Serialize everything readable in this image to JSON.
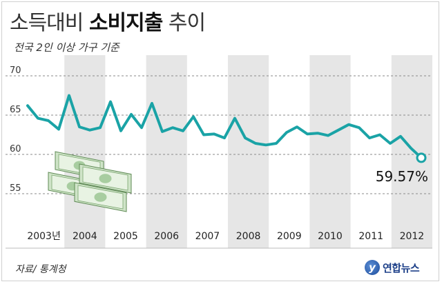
{
  "header": {
    "title_light": "소득대비 ",
    "title_bold": "소비지출",
    "title_tail": " 추이",
    "subtitle": "전국 2인 이상 가구 기준"
  },
  "footer": {
    "source": "자료/ 통계청",
    "logo_text": "연합뉴스",
    "logo_mark": "y"
  },
  "colors": {
    "line": "#1aa3a6",
    "band": "#e6e6e6",
    "grid": "#8a8a8a"
  },
  "chart_data": {
    "type": "line",
    "title": "소득대비 소비지출 추이",
    "subtitle": "전국 2인 이상 가구 기준",
    "xlabel": "",
    "ylabel": "",
    "ylim": [
      50,
      70
    ],
    "yticks": [
      55,
      60,
      65,
      70
    ],
    "grid": true,
    "x_labels": [
      "2003년",
      "2004",
      "2005",
      "2006",
      "2007",
      "2008",
      "2009",
      "2010",
      "2011",
      "2012"
    ],
    "series": [
      {
        "values": [
          66.2,
          64.6,
          64.3,
          63.2,
          67.5,
          63.5,
          63.1,
          63.4,
          66.7,
          63.0,
          65.1,
          63.4,
          66.5,
          62.9,
          63.4,
          63.0,
          64.8,
          62.5,
          62.6,
          62.1,
          64.6,
          62.1,
          61.4,
          61.2,
          61.4,
          62.8,
          63.5,
          62.6,
          62.7,
          62.4,
          63.1,
          63.8,
          63.4,
          62.1,
          62.5,
          61.4,
          62.3,
          60.8,
          59.57
        ],
        "last_label": "59.57%"
      }
    ]
  }
}
